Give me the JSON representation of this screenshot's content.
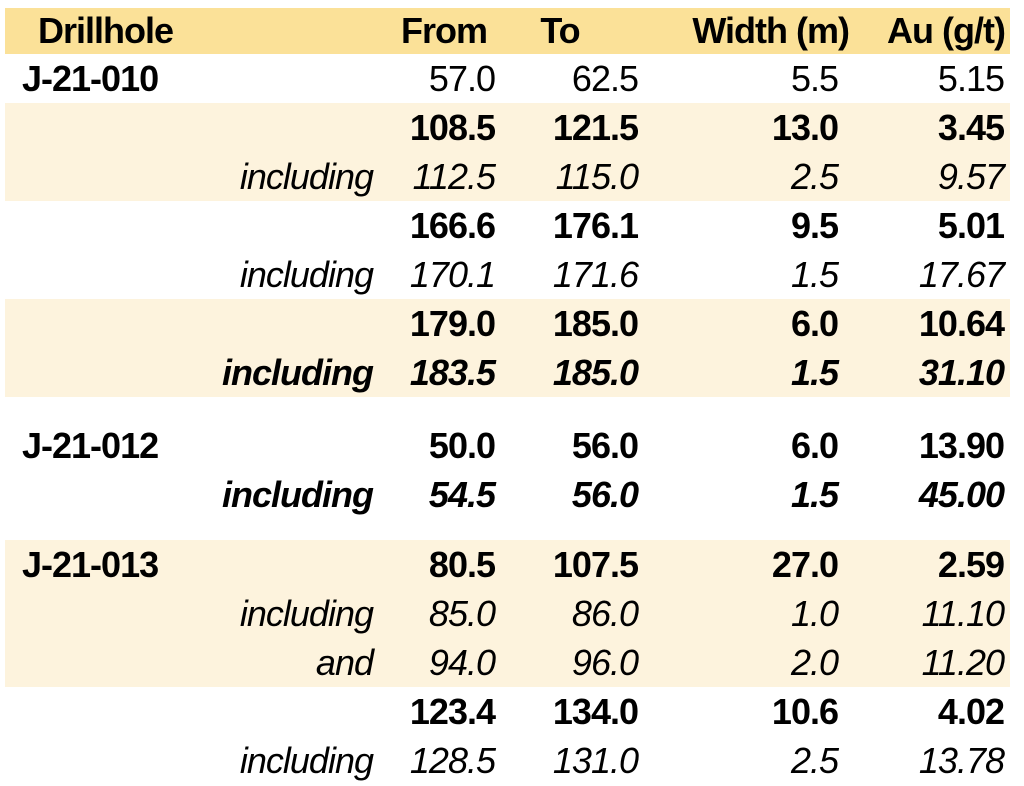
{
  "colors": {
    "header_bg": "#FBE198",
    "band_bg": "#FDF3DD",
    "row_bg": "#FFFFFF",
    "text": "#000000"
  },
  "table": {
    "columns": [
      "Drillhole",
      "From",
      "To",
      "Width (m)",
      "Au (g/t)"
    ],
    "rows": [
      {
        "name": "J-21-010",
        "qualifier": "",
        "from": "57.0",
        "to": "62.5",
        "width": "5.5",
        "au": "5.15",
        "emphasis": "regular",
        "band": "white",
        "spacer_before": 0
      },
      {
        "name": "",
        "qualifier": "",
        "from": "108.5",
        "to": "121.5",
        "width": "13.0",
        "au": "3.45",
        "emphasis": "bold",
        "band": "cream",
        "spacer_before": 0
      },
      {
        "name": "",
        "qualifier": "including",
        "from": "112.5",
        "to": "115.0",
        "width": "2.5",
        "au": "9.57",
        "emphasis": "italic",
        "band": "cream",
        "spacer_before": 0
      },
      {
        "name": "",
        "qualifier": "",
        "from": "166.6",
        "to": "176.1",
        "width": "9.5",
        "au": "5.01",
        "emphasis": "bold",
        "band": "white",
        "spacer_before": 0
      },
      {
        "name": "",
        "qualifier": "including",
        "from": "170.1",
        "to": "171.6",
        "width": "1.5",
        "au": "17.67",
        "emphasis": "italic",
        "band": "white",
        "spacer_before": 0
      },
      {
        "name": "",
        "qualifier": "",
        "from": "179.0",
        "to": "185.0",
        "width": "6.0",
        "au": "10.64",
        "emphasis": "bold",
        "band": "cream",
        "spacer_before": 0
      },
      {
        "name": "",
        "qualifier": "including",
        "from": "183.5",
        "to": "185.0",
        "width": "1.5",
        "au": "31.10",
        "emphasis": "bold-italic",
        "band": "cream",
        "spacer_before": 0
      },
      {
        "name": "J-21-012",
        "qualifier": "",
        "from": "50.0",
        "to": "56.0",
        "width": "6.0",
        "au": "13.90",
        "emphasis": "bold",
        "band": "white",
        "spacer_before": 24
      },
      {
        "name": "",
        "qualifier": "including",
        "from": "54.5",
        "to": "56.0",
        "width": "1.5",
        "au": "45.00",
        "emphasis": "bold-italic",
        "band": "white",
        "spacer_before": 0
      },
      {
        "name": "J-21-013",
        "qualifier": "",
        "from": "80.5",
        "to": "107.5",
        "width": "27.0",
        "au": "2.59",
        "emphasis": "bold",
        "band": "cream",
        "spacer_before": 21
      },
      {
        "name": "",
        "qualifier": "including",
        "from": "85.0",
        "to": "86.0",
        "width": "1.0",
        "au": "11.10",
        "emphasis": "italic",
        "band": "cream",
        "spacer_before": 0
      },
      {
        "name": "",
        "qualifier": "and",
        "from": "94.0",
        "to": "96.0",
        "width": "2.0",
        "au": "11.20",
        "emphasis": "italic",
        "band": "cream",
        "spacer_before": 0
      },
      {
        "name": "",
        "qualifier": "",
        "from": "123.4",
        "to": "134.0",
        "width": "10.6",
        "au": "4.02",
        "emphasis": "bold",
        "band": "white",
        "spacer_before": 0
      },
      {
        "name": "",
        "qualifier": "including",
        "from": "128.5",
        "to": "131.0",
        "width": "2.5",
        "au": "13.78",
        "emphasis": "italic",
        "band": "white",
        "spacer_before": 0
      }
    ]
  }
}
